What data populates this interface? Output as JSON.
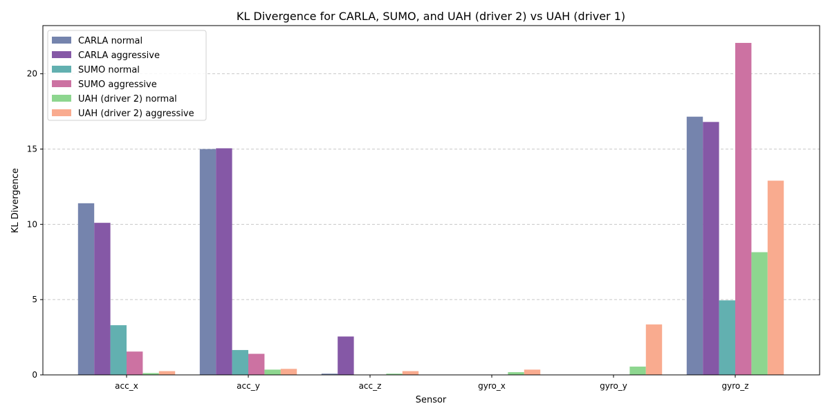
{
  "chart_data": {
    "type": "bar",
    "title": "KL Divergence for CARLA, SUMO, and UAH (driver 2) vs UAH (driver 1)",
    "xlabel": "Sensor",
    "ylabel": "KL Divergence",
    "categories": [
      "acc_x",
      "acc_y",
      "acc_z",
      "gyro_x",
      "gyro_y",
      "gyro_z"
    ],
    "ylim": [
      0,
      23.2
    ],
    "yticks": [
      0,
      5,
      10,
      15,
      20
    ],
    "grid": "y-dashed",
    "legend_position": "top-left",
    "series": [
      {
        "name": "CARLA normal",
        "color": "#7584ad",
        "values": [
          11.4,
          15.0,
          0.08,
          0.0,
          0.0,
          17.15
        ]
      },
      {
        "name": "CARLA aggressive",
        "color": "#8558a6",
        "values": [
          10.1,
          15.05,
          2.55,
          0.0,
          0.0,
          16.8
        ]
      },
      {
        "name": "SUMO normal",
        "color": "#62b0b0",
        "values": [
          3.3,
          1.65,
          0.0,
          0.0,
          0.0,
          4.95
        ]
      },
      {
        "name": "SUMO aggressive",
        "color": "#cc72a2",
        "values": [
          1.55,
          1.4,
          0.0,
          0.0,
          0.0,
          22.05
        ]
      },
      {
        "name": "UAH (driver 2) normal",
        "color": "#8dd68f",
        "values": [
          0.12,
          0.35,
          0.08,
          0.18,
          0.55,
          8.15
        ]
      },
      {
        "name": "UAH (driver 2) aggressive",
        "color": "#f9ab8f",
        "values": [
          0.25,
          0.4,
          0.25,
          0.35,
          3.35,
          12.9
        ]
      }
    ]
  }
}
